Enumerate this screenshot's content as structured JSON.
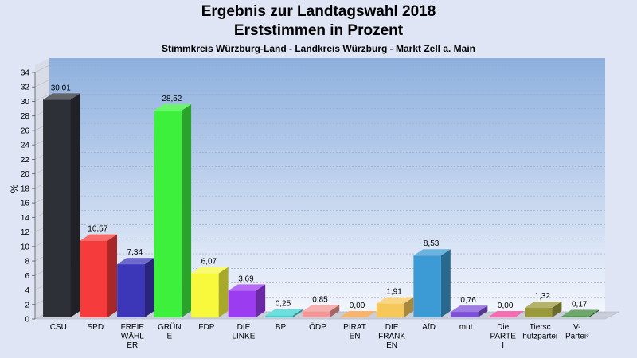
{
  "chart_data": {
    "type": "bar",
    "title": "Ergebnis zur Landtagswahl 2018",
    "subtitle": "Erststimmen in Prozent",
    "caption": "Stimmkreis Würzburg-Land - Landkreis Würzburg - Markt Zell a. Main",
    "ylabel": "%",
    "ylim": [
      0,
      34
    ],
    "ytick_step": 2,
    "grid": true,
    "categories": [
      "CSU",
      "SPD",
      "FREIE WÄHLER",
      "GRÜNE",
      "FDP",
      "DIE LINKE",
      "BP",
      "ÖDP",
      "PIRATEN",
      "DIE FRANKEN",
      "AfD",
      "mut",
      "Die PARTEI",
      "Tierschutzpartei",
      "V-Partei³"
    ],
    "category_lines": [
      [
        "CSU"
      ],
      [
        "SPD"
      ],
      [
        "FREIE",
        "WÄHL",
        "ER"
      ],
      [
        "GRÜN",
        "E"
      ],
      [
        "FDP"
      ],
      [
        "DIE",
        "LINKE"
      ],
      [
        "BP"
      ],
      [
        "ÖDP"
      ],
      [
        "PIRAT",
        "EN"
      ],
      [
        "DIE",
        "FRANK",
        "EN"
      ],
      [
        "AfD"
      ],
      [
        "mut"
      ],
      [
        "Die",
        "PARTE",
        "I"
      ],
      [
        "Tiersc",
        "hutzpartei"
      ],
      [
        "V-",
        "Partei³"
      ]
    ],
    "values": [
      30.01,
      10.57,
      7.34,
      28.52,
      6.07,
      3.69,
      0.25,
      0.85,
      0.0,
      1.91,
      8.53,
      0.76,
      0.0,
      1.32,
      0.17
    ],
    "value_labels": [
      "30,01",
      "10,57",
      "7,34",
      "28,52",
      "6,07",
      "3,69",
      "0,25",
      "0,85",
      "0,00",
      "1,91",
      "8,53",
      "0,76",
      "0,00",
      "1,32",
      "0,17"
    ],
    "colors": [
      "#2e3038",
      "#f53b3b",
      "#3c37b8",
      "#3cf03c",
      "#f8f83c",
      "#9c3cf0",
      "#3cd2d2",
      "#f29696",
      "#f59a3c",
      "#f6c85a",
      "#3c9ad4",
      "#7e50d8",
      "#f03c96",
      "#9a9a3c",
      "#3c8a3c"
    ]
  }
}
